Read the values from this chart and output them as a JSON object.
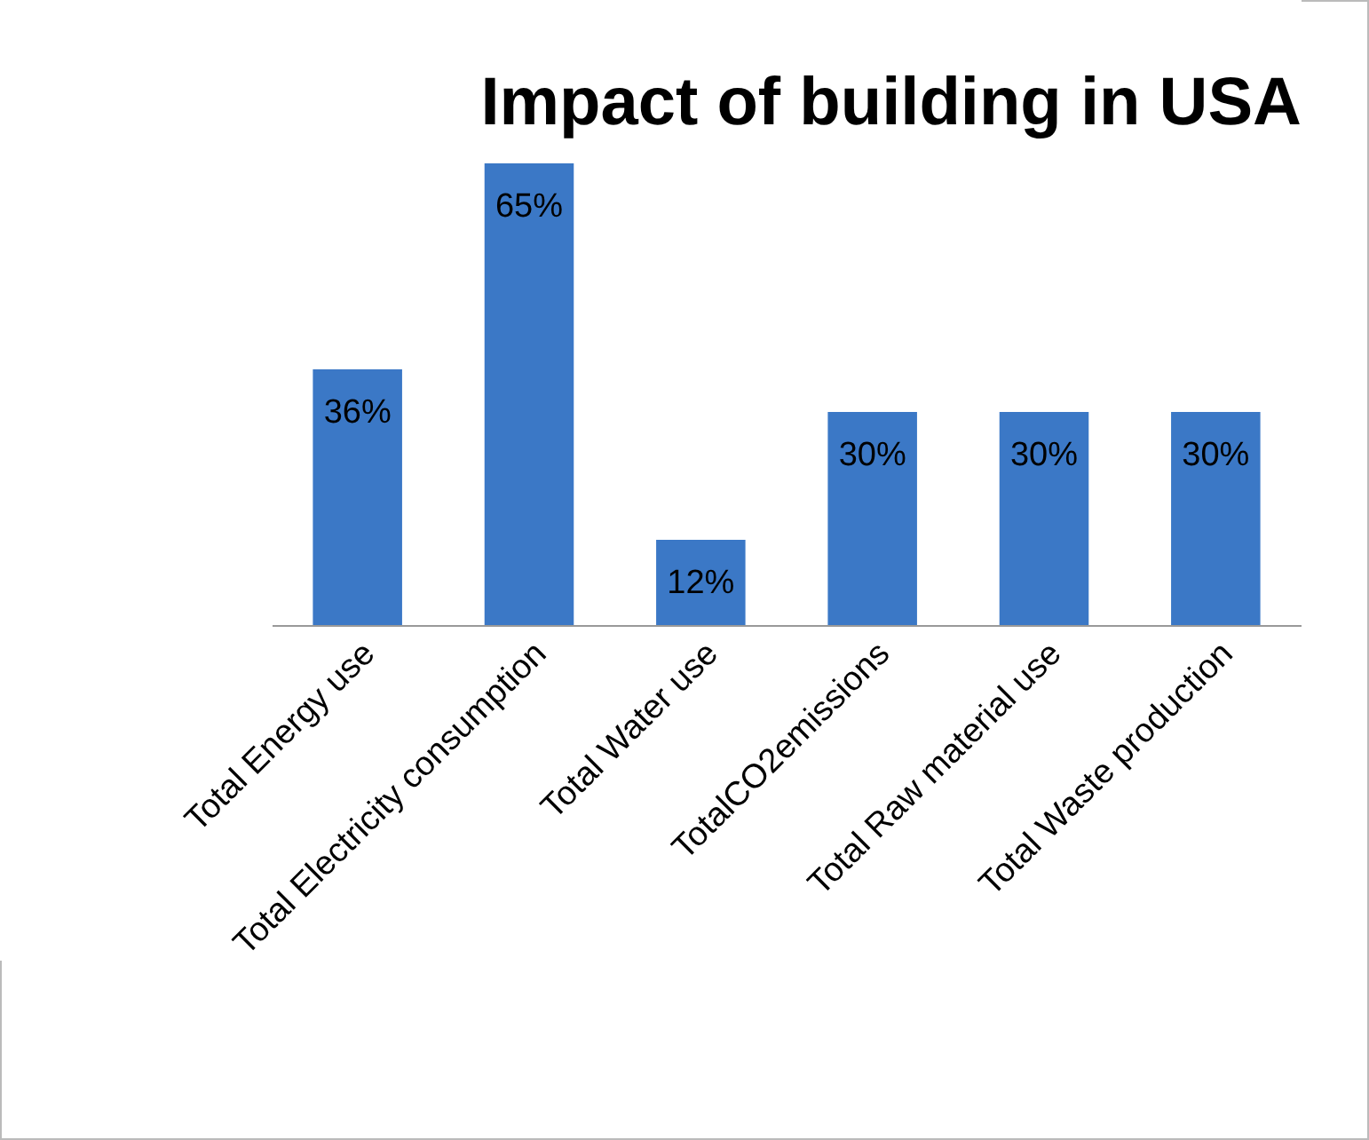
{
  "chart_data": {
    "type": "bar",
    "title": "Impact of building in  USA",
    "categories": [
      "Total Energy use",
      "Total Electricity consumption",
      "Total Water use",
      "TotalCO2emissions",
      "Total Raw material use",
      "Total Waste production"
    ],
    "values": [
      36,
      65,
      12,
      30,
      30,
      30
    ],
    "value_labels": [
      "36%",
      "65%",
      "12%",
      "30%",
      "30%",
      "30%"
    ],
    "color": "#3b78c6"
  }
}
